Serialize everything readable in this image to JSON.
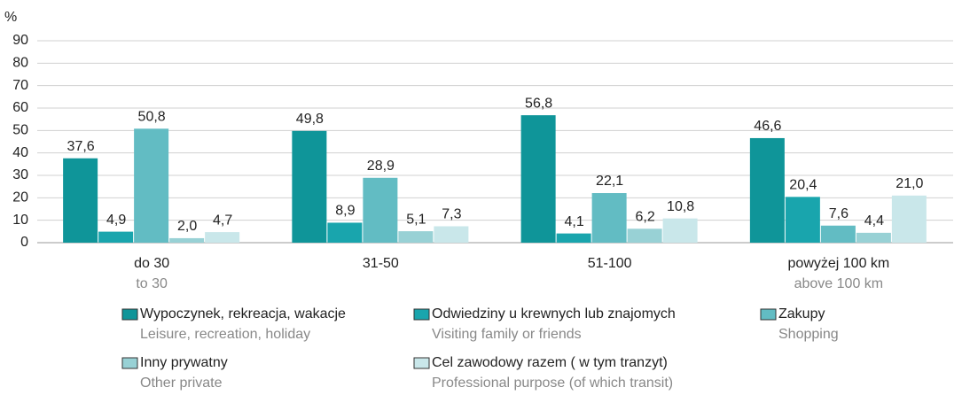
{
  "chart_data": {
    "type": "bar",
    "unit": "%",
    "categories": [
      "do 30",
      "31-50",
      "51-100",
      "powyżej 100 km"
    ],
    "categories_secondary": [
      "to 30",
      null,
      null,
      "above 100 km"
    ],
    "series": [
      {
        "name": "Wypoczynek, rekreacja, wakacje",
        "name_secondary": "Leisure, recreation, holiday",
        "color": "#0f9599",
        "values": [
          37.6,
          49.8,
          56.8,
          46.6
        ],
        "value_labels": [
          "37,6",
          "49,8",
          "56,8",
          "46,6"
        ]
      },
      {
        "name": "Odwiedziny u krewnych lub znajomych",
        "name_secondary": "Visiting family or friends",
        "color": "#19a5ad",
        "values": [
          4.9,
          8.9,
          4.1,
          20.4
        ],
        "value_labels": [
          "4,9",
          "8,9",
          "4,1",
          "20,4"
        ]
      },
      {
        "name": "Zakupy",
        "name_secondary": "Shopping",
        "color": "#62bcc3",
        "values": [
          50.8,
          28.9,
          22.1,
          7.6
        ],
        "value_labels": [
          "50,8",
          "28,9",
          "22,1",
          "7,6"
        ]
      },
      {
        "name": "Inny prywatny",
        "name_secondary": "Other private",
        "color": "#98d1d5",
        "values": [
          2.0,
          5.1,
          6.2,
          4.4
        ],
        "value_labels": [
          "2,0",
          "5,1",
          "6,2",
          "4,4"
        ]
      },
      {
        "name": "Cel zawodowy razem ( w tym tranzyt)",
        "name_secondary": "Professional purpose (of which transit)",
        "color": "#c9e7ea",
        "values": [
          4.7,
          7.3,
          10.8,
          21.0
        ],
        "value_labels": [
          "4,7",
          "7,3",
          "10,8",
          "21,0"
        ]
      }
    ],
    "ylim": [
      0,
      90
    ],
    "yticks": [
      0,
      10,
      20,
      30,
      40,
      50,
      60,
      70,
      80,
      90
    ],
    "grid": true
  }
}
